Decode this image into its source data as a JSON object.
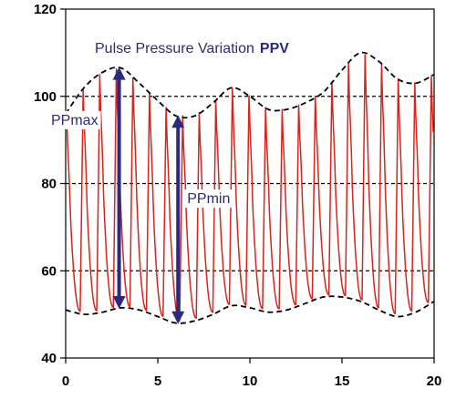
{
  "chart_data": {
    "type": "line",
    "title": "Pulse Pressure Variation",
    "title_emphasis": "PPV",
    "xlabel": "",
    "ylabel": "",
    "xlim": [
      0,
      20
    ],
    "ylim": [
      40,
      120
    ],
    "x_ticks": [
      "0",
      "5",
      "10",
      "15",
      "20"
    ],
    "y_ticks": [
      "40",
      "60",
      "80",
      "100",
      "120"
    ],
    "y_tick_values": [
      40,
      60,
      80,
      100,
      120
    ],
    "x_tick_values": [
      0,
      5,
      10,
      15,
      20
    ],
    "reference_lines": [
      60,
      80,
      100
    ],
    "grid": false,
    "colors": {
      "signal": "#d9241b",
      "envelope": "#000000",
      "annotation": "#2b2a7e"
    },
    "envelope_upper": {
      "x": [
        0,
        1,
        2,
        3,
        4,
        5,
        6,
        7,
        8,
        9,
        10,
        11,
        12,
        13,
        14,
        15,
        16,
        17,
        18,
        19,
        20
      ],
      "y": [
        96,
        102,
        105.5,
        106.5,
        103,
        99,
        95.5,
        95.5,
        98.5,
        102,
        100,
        97,
        97,
        98.5,
        101,
        106,
        110,
        108,
        104,
        103,
        105
      ]
    },
    "envelope_lower": {
      "x": [
        0,
        1,
        2,
        3,
        4,
        5,
        6,
        7,
        8,
        9,
        10,
        11,
        12,
        13,
        14,
        15,
        16,
        17,
        18,
        19,
        20
      ],
      "y": [
        51,
        50,
        50.5,
        51.5,
        51,
        49.5,
        48,
        48.5,
        50,
        52,
        51.5,
        50.5,
        51,
        52.5,
        54,
        54,
        53,
        51,
        49.5,
        50.5,
        53
      ]
    },
    "beat_period": 0.9,
    "beat_start": 0.05,
    "annotations": [
      {
        "label": "PPmax",
        "x": 2.9,
        "y_top": 106.5,
        "y_bottom": 51.5
      },
      {
        "label": "PPmin",
        "x": 6.1,
        "y_top": 95.5,
        "y_bottom": 48
      }
    ]
  }
}
